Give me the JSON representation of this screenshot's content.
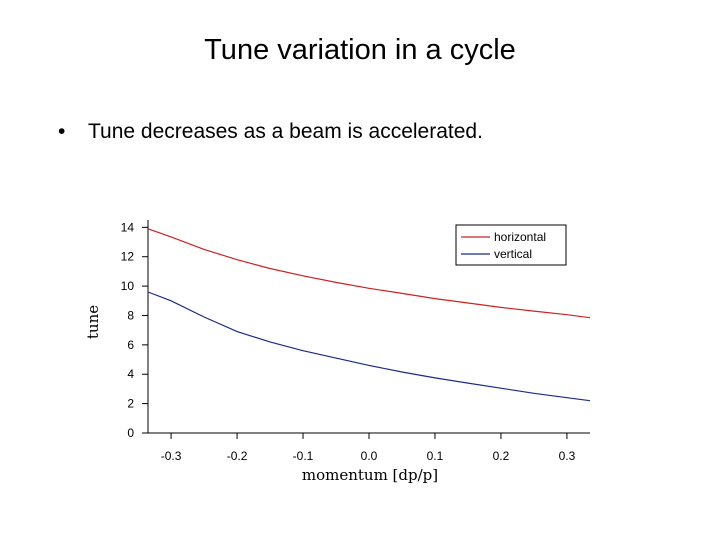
{
  "slide": {
    "title": "Tune variation in a cycle",
    "bullet": "•",
    "bullets": [
      "Tune decreases as a beam is accelerated."
    ]
  },
  "chart_data": {
    "type": "line",
    "title": "",
    "xlabel": "momentum [dp/p]",
    "ylabel": "tune",
    "xlim": [
      -0.335,
      0.335
    ],
    "ylim": [
      0,
      14.5
    ],
    "xticks": [
      -0.3,
      -0.2,
      -0.1,
      0.0,
      0.1,
      0.2,
      0.3
    ],
    "xtick_labels": [
      "-0.3",
      "-0.2",
      "-0.1",
      "0.0",
      "0.1",
      "0.2",
      "0.3"
    ],
    "yticks": [
      0,
      2,
      4,
      6,
      8,
      10,
      12,
      14
    ],
    "ytick_labels": [
      "0",
      "2",
      "4",
      "6",
      "8",
      "10",
      "12",
      "14"
    ],
    "grid": false,
    "legend_position": "top-right",
    "series": [
      {
        "name": "horizontal",
        "color": "#cc2222",
        "x": [
          -0.335,
          -0.3,
          -0.25,
          -0.2,
          -0.15,
          -0.1,
          -0.05,
          0.0,
          0.05,
          0.1,
          0.15,
          0.2,
          0.25,
          0.3,
          0.335
        ],
        "y": [
          13.9,
          13.35,
          12.5,
          11.8,
          11.2,
          10.7,
          10.25,
          9.85,
          9.5,
          9.15,
          8.85,
          8.55,
          8.3,
          8.05,
          7.85
        ]
      },
      {
        "name": "vertical",
        "color": "#1a2a8c",
        "x": [
          -0.335,
          -0.3,
          -0.25,
          -0.2,
          -0.15,
          -0.1,
          -0.05,
          0.0,
          0.05,
          0.1,
          0.15,
          0.2,
          0.25,
          0.3,
          0.335
        ],
        "y": [
          9.6,
          9.0,
          7.9,
          6.9,
          6.2,
          5.6,
          5.1,
          4.6,
          4.15,
          3.75,
          3.4,
          3.05,
          2.7,
          2.4,
          2.2
        ]
      }
    ]
  }
}
